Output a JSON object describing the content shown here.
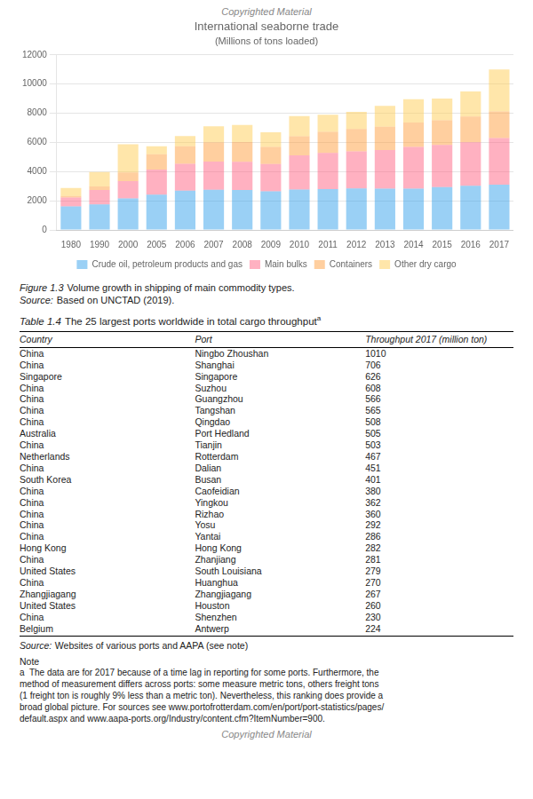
{
  "watermark": "Copyrighted Material",
  "chart_data": {
    "type": "bar",
    "title": "International seaborne trade",
    "subtitle": "(Millions of tons loaded)",
    "categories": [
      "1980",
      "1990",
      "2000",
      "2005",
      "2006",
      "2007",
      "2008",
      "2009",
      "2010",
      "2011",
      "2012",
      "2013",
      "2014",
      "2015",
      "2016",
      "2017"
    ],
    "series": [
      {
        "name": "Crude oil, petroleum products and gas",
        "values": [
          1617,
          1755,
          2163,
          2422,
          2698,
          2747,
          2742,
          2642,
          2772,
          2794,
          2841,
          2829,
          2825,
          2932,
          3026,
          3097
        ]
      },
      {
        "name": "Main bulks",
        "values": [
          608,
          988,
          1186,
          1709,
          1834,
          1933,
          1933,
          1874,
          2335,
          2486,
          2538,
          2647,
          2865,
          2895,
          2985,
          3194
        ]
      },
      {
        "name": "Containers",
        "values": [
          102,
          234,
          598,
          1052,
          1199,
          1327,
          1356,
          1167,
          1320,
          1449,
          1538,
          1594,
          1666,
          1687,
          1760,
          1834
        ]
      },
      {
        "name": "Other dry cargo",
        "values": [
          550,
          1000,
          1928,
          547,
          700,
          1093,
          1169,
          1017,
          1373,
          1171,
          1183,
          1430,
          1604,
          1486,
          1729,
          2875
        ]
      }
    ],
    "ylim": [
      0,
      12000
    ],
    "yticks": [
      0,
      2000,
      4000,
      6000,
      8000,
      10000,
      12000
    ],
    "stacked": true,
    "grid": true,
    "legend": "bottom"
  },
  "figure_caption": {
    "label": "Figure 1.3",
    "text": "Volume growth in shipping of main commodity types."
  },
  "chart_source": {
    "label": "Source:",
    "text": "Based on UNCTAD (2019)."
  },
  "table": {
    "label": "Table 1.4",
    "title": "The 25 largest ports worldwide in total cargo throughput",
    "superscript": "a",
    "headers": [
      "Country",
      "Port",
      "Throughput 2017 (million ton)"
    ],
    "rows": [
      [
        "China",
        "Ningbo Zhoushan",
        "1010"
      ],
      [
        "China",
        "Shanghai",
        "706"
      ],
      [
        "Singapore",
        "Singapore",
        "626"
      ],
      [
        "China",
        "Suzhou",
        "608"
      ],
      [
        "China",
        "Guangzhou",
        "566"
      ],
      [
        "China",
        "Tangshan",
        "565"
      ],
      [
        "China",
        "Qingdao",
        "508"
      ],
      [
        "Australia",
        "Port Hedland",
        "505"
      ],
      [
        "China",
        "Tianjin",
        "503"
      ],
      [
        "Netherlands",
        "Rotterdam",
        "467"
      ],
      [
        "China",
        "Dalian",
        "451"
      ],
      [
        "South Korea",
        "Busan",
        "401"
      ],
      [
        "China",
        "Caofeidian",
        "380"
      ],
      [
        "China",
        "Yingkou",
        "362"
      ],
      [
        "China",
        "Rizhao",
        "360"
      ],
      [
        "China",
        "Yosu",
        "292"
      ],
      [
        "China",
        "Yantai",
        "286"
      ],
      [
        "Hong Kong",
        "Hong Kong",
        "282"
      ],
      [
        "China",
        "Zhanjiang",
        "281"
      ],
      [
        "United States",
        "South Louisiana",
        "279"
      ],
      [
        "China",
        "Huanghua",
        "270"
      ],
      [
        "Zhangjiagang",
        "Zhangjiagang",
        "267"
      ],
      [
        "United States",
        "Houston",
        "260"
      ],
      [
        "China",
        "Shenzhen",
        "230"
      ],
      [
        "Belgium",
        "Antwerp",
        "224"
      ]
    ],
    "source": {
      "label": "Source:",
      "text": "Websites of various ports and AAPA (see note)"
    },
    "note_title": "Note",
    "note_lines": [
      "a  The data are for 2017 because of a time lag in reporting for some ports. Furthermore, the",
      "method of measurement differs across ports: some measure metric tons, others freight tons",
      "(1 freight ton is roughly 9% less than a metric ton). Nevertheless, this ranking does provide a",
      "broad global picture. For sources see www.portofrotterdam.com/en/port/port-statistics/pages/",
      "default.aspx and www.aapa-ports.org/Industry/content.cfm?ItemNumber=900."
    ]
  }
}
